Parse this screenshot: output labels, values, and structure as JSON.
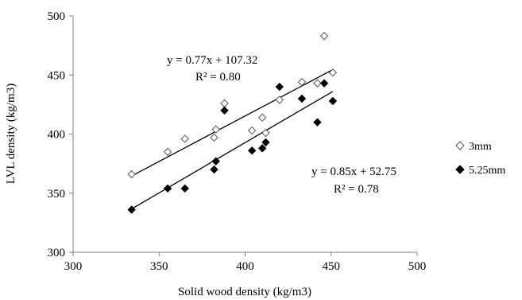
{
  "chart_data": {
    "type": "scatter",
    "title": "",
    "xlabel": "Solid wood density (kg/m3)",
    "ylabel": "LVL density (kg/m3)",
    "xlim": [
      300,
      500
    ],
    "ylim": [
      300,
      500
    ],
    "xticks": [
      300,
      350,
      400,
      450,
      500
    ],
    "yticks": [
      300,
      350,
      400,
      450,
      500
    ],
    "grid": false,
    "legend_position": "right",
    "series": [
      {
        "name": "3mm",
        "marker": "hollow-diamond",
        "color": "#555555",
        "x": [
          334,
          355,
          365,
          382,
          383,
          388,
          404,
          410,
          412,
          420,
          433,
          442,
          446,
          451
        ],
        "y": [
          366,
          385,
          396,
          397,
          404,
          426,
          403,
          414,
          401,
          429,
          444,
          443,
          483,
          452
        ],
        "trendline": {
          "slope": 0.77,
          "intercept": 107.32,
          "x_range": [
            334,
            451
          ],
          "equation": "y = 0.77x + 107.32",
          "r2": "R² = 0.80"
        }
      },
      {
        "name": "5.25mm",
        "marker": "filled-diamond",
        "color": "#000000",
        "x": [
          334,
          355,
          365,
          382,
          383,
          388,
          404,
          410,
          412,
          420,
          433,
          442,
          446,
          451
        ],
        "y": [
          336,
          354,
          354,
          370,
          377,
          420,
          386,
          388,
          393,
          440,
          430,
          410,
          443,
          428
        ],
        "trendline": {
          "slope": 0.85,
          "intercept": 52.75,
          "x_range": [
            334,
            451
          ],
          "equation": "y = 0.85x + 52.75",
          "r2": "R² = 0.78"
        }
      }
    ]
  }
}
